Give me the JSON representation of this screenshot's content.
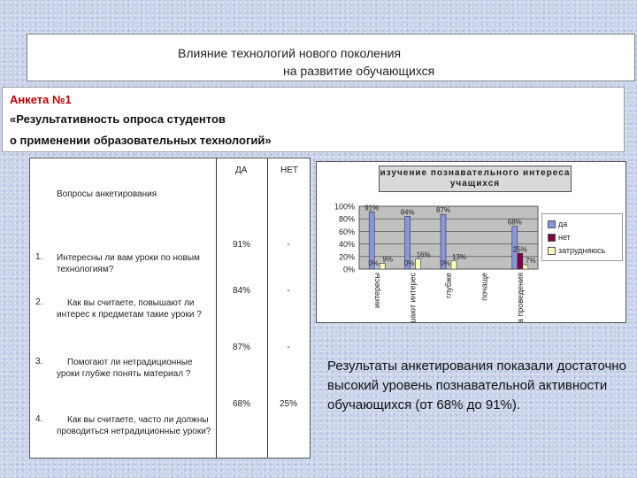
{
  "title": {
    "line1": "Влияние технологий нового поколения",
    "line2": "на развитие обучающихся"
  },
  "survey": {
    "heading": "Анкета №1",
    "line2": "«Результативность  опроса студентов",
    "line3": "о применении образовательных технологий»"
  },
  "table": {
    "col_yes": "ДА",
    "col_no": "НЕТ",
    "questions_header": "Вопросы анкетирования",
    "rows": [
      {
        "num": "1.",
        "text": "Интересны ли вам уроки по новым технологиям?",
        "yes": "91%",
        "no": "-"
      },
      {
        "num": "2.",
        "text": "Как вы считаете, повышают ли интерес к предметам  такие уроки ?",
        "yes": "84%",
        "no": "-"
      },
      {
        "num": "3.",
        "text": "Помогают ли нетрадиционные уроки глубже понять материал ?",
        "yes": "87%",
        "no": "-"
      },
      {
        "num": "4.",
        "text": "Как вы считаете, часто ли должны проводиться нетрадиционные уроки?",
        "yes": "68%",
        "no": "25%"
      }
    ]
  },
  "chart_data": {
    "type": "bar",
    "title": "изучение познавательного интереса учащихся",
    "categories": [
      "интересы",
      "повышают интерес",
      "глубже",
      "почаще",
      "частота проведения"
    ],
    "series": [
      {
        "name": "да",
        "color": "#8896e0",
        "values": [
          91,
          84,
          87,
          0,
          68
        ],
        "labels": [
          "91%",
          "84%",
          "87%",
          "",
          "68%"
        ]
      },
      {
        "name": "нет",
        "color": "#800040",
        "values": [
          0,
          0,
          0,
          0,
          25
        ],
        "labels": [
          "",
          "",
          "",
          "",
          "25%"
        ]
      },
      {
        "name": "затрудняюсь",
        "color": "#ffffc0",
        "values": [
          9,
          16,
          13,
          0,
          7
        ],
        "labels": [
          "9%",
          "16%",
          "13%",
          "",
          "7%"
        ]
      }
    ],
    "extra_labels": [
      {
        "category": 0,
        "text": "0%"
      },
      {
        "category": 1,
        "text": "0%"
      },
      {
        "category": 2,
        "text": "0%"
      }
    ],
    "ylim": [
      0,
      100
    ],
    "yticks": [
      "0%",
      "20%",
      "40%",
      "60%",
      "80%",
      "100%"
    ],
    "legend_position": "right",
    "grid": true
  },
  "conclusion": "Результаты анкетирования показали достаточно высокий уровень познавательной активности обучающихся (от 68% до 91%)."
}
